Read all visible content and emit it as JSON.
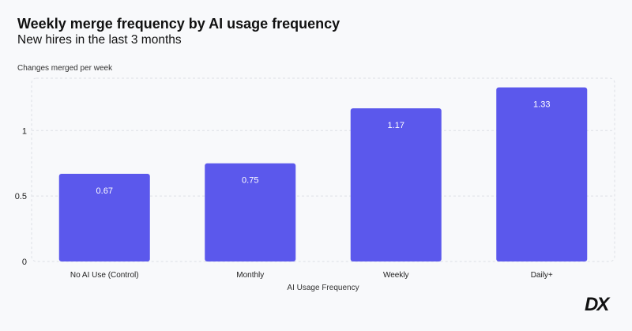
{
  "chart_data": {
    "type": "bar",
    "title": "Weekly merge frequency by AI usage frequency",
    "subtitle": "New hires in the last 3 months",
    "ylabel": "Changes merged per week",
    "xlabel": "AI Usage Frequency",
    "categories": [
      "No AI Use (Control)",
      "Monthly",
      "Weekly",
      "Daily+"
    ],
    "values": [
      0.67,
      0.75,
      1.17,
      1.33
    ],
    "value_labels": [
      "0.67",
      "0.75",
      "1.17",
      "1.33"
    ],
    "yticks": [
      0,
      0.5,
      1
    ],
    "ytick_labels": [
      "0",
      "0.5",
      "1"
    ],
    "ylim": [
      0,
      1.4
    ],
    "grid": true,
    "bar_color": "#5b58ec"
  },
  "logo": "DX"
}
